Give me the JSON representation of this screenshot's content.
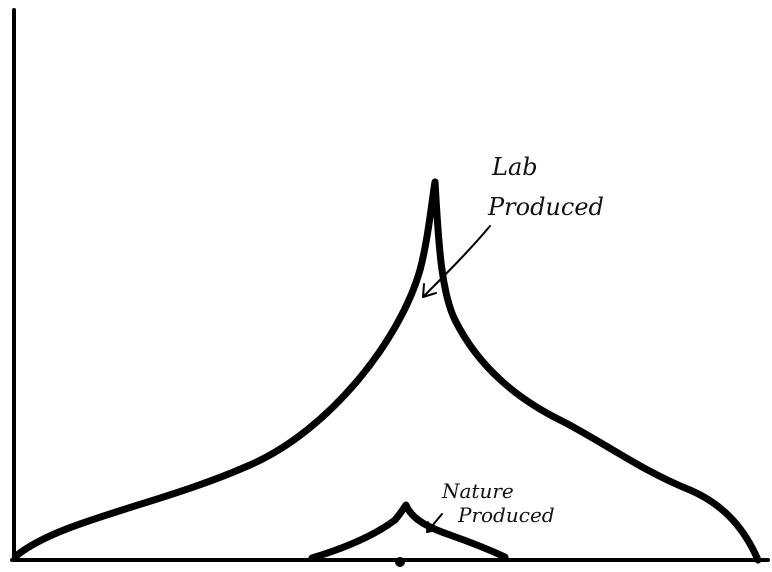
{
  "annotations": {
    "lab": [
      "Lab",
      "Produced"
    ],
    "nature": [
      "Nature",
      "Produced"
    ]
  }
}
